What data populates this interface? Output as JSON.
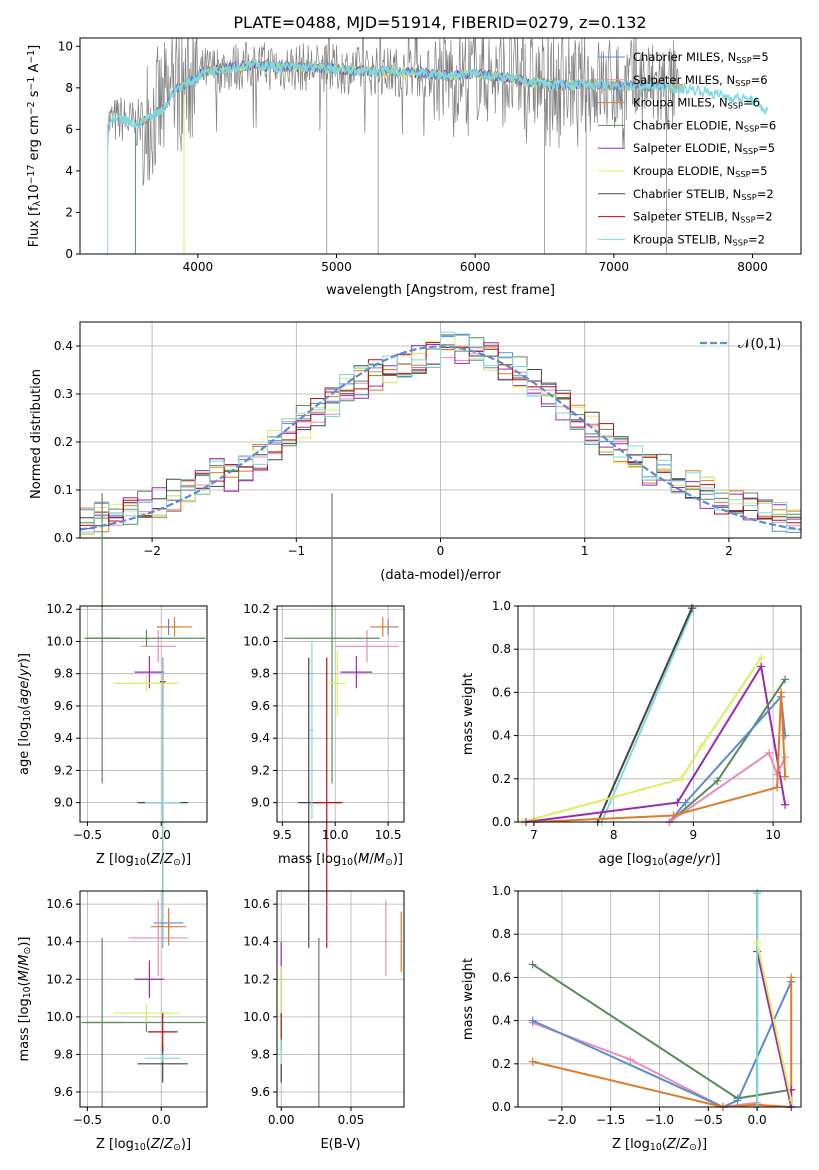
{
  "title": "PLATE=0488, MJD=51914, FIBERID=0279, z=0.132",
  "colors": {
    "chabrier_miles": "#5b8bd0",
    "salpeter_miles": "#e88cb8",
    "kroupa_miles": "#e07b2a",
    "chabrier_elodie": "#5a8a5a",
    "salpeter_elodie": "#9a2ab0",
    "kroupa_elodie": "#d8f060",
    "chabrier_stelib": "#444444",
    "salpeter_stelib": "#b01010",
    "kroupa_stelib": "#80d8e0",
    "data": "#808080",
    "normal": "#5b8bd0",
    "grid": "#b0b0b0"
  },
  "legend_spectrum": [
    {
      "name": "Chabrier MILES",
      "nssp": "5",
      "color": "#5b8bd0"
    },
    {
      "name": "Salpeter MILES",
      "nssp": "6",
      "color": "#e88cb8"
    },
    {
      "name": "Kroupa MILES",
      "nssp": "6",
      "color": "#e07b2a"
    },
    {
      "name": "Chabrier ELODIE",
      "nssp": "6",
      "color": "#5a8a5a"
    },
    {
      "name": "Salpeter ELODIE",
      "nssp": "5",
      "color": "#9a2ab0"
    },
    {
      "name": "Kroupa ELODIE",
      "nssp": "5",
      "color": "#d8f060"
    },
    {
      "name": "Chabrier STELIB",
      "nssp": "2",
      "color": "#444444"
    },
    {
      "name": "Salpeter STELIB",
      "nssp": "2",
      "color": "#b01010"
    },
    {
      "name": "Kroupa STELIB",
      "nssp": "2",
      "color": "#80d8e0"
    }
  ],
  "chart_data": [
    {
      "id": "spectrum",
      "type": "line",
      "xlabel": "wavelength [Angstrom, rest frame]",
      "ylabel": "Flux [f_λ10^-17 erg cm^-2 s^-1 A^-1]",
      "xlim": [
        3150,
        8350
      ],
      "ylim": [
        0,
        10.4
      ],
      "xticks": [
        4000,
        5000,
        6000,
        7000,
        8000
      ],
      "yticks": [
        0,
        2,
        4,
        6,
        8,
        10
      ],
      "continuum": {
        "x": [
          3350,
          3450,
          3550,
          3650,
          3750,
          3850,
          3950,
          4050,
          4150,
          4250,
          4400,
          4600,
          4800,
          5000,
          5200,
          5400,
          5600,
          5800,
          6000,
          6200,
          6400,
          6600,
          6800,
          7000,
          7200,
          7400,
          7600,
          7800,
          8000,
          8100
        ],
        "y": [
          6.3,
          6.5,
          6.2,
          6.6,
          7.0,
          8.0,
          8.3,
          8.8,
          8.9,
          9.0,
          9.1,
          9.0,
          9.0,
          8.9,
          8.8,
          8.8,
          8.7,
          8.6,
          8.7,
          8.5,
          8.3,
          8.1,
          8.2,
          8.1,
          8.1,
          8.0,
          7.9,
          7.6,
          7.4,
          6.9
        ]
      },
      "grid": false,
      "legend_position": "upper right"
    },
    {
      "id": "residuals",
      "type": "step",
      "xlabel": "(data-model)/error",
      "ylabel": "Normed distribution",
      "xlim": [
        -2.5,
        2.5
      ],
      "ylim": [
        0,
        0.45
      ],
      "xticks": [
        -2,
        -1,
        0,
        1,
        2
      ],
      "yticks": [
        0.0,
        0.1,
        0.2,
        0.3,
        0.4
      ],
      "bin_width": 0.1,
      "normal_label": "𝒩(0,1)",
      "grid": true,
      "legend_position": "upper right"
    },
    {
      "id": "age_vs_z",
      "type": "errorbar",
      "xlabel": "Z [log10(Z/Z⊙)]",
      "ylabel": "age  [log10(age/yr)]",
      "xlim": [
        -0.55,
        0.31
      ],
      "ylim": [
        8.88,
        10.22
      ],
      "xticks": [
        -0.5,
        0.0
      ],
      "yticks": [
        9.0,
        9.2,
        9.4,
        9.6,
        9.8,
        10.0,
        10.2
      ],
      "points": [
        {
          "model": "chabrier_miles",
          "x": 0.05,
          "y": 10.09,
          "xerr": 0.08,
          "yerr": 0.05
        },
        {
          "model": "salpeter_miles",
          "x": -0.02,
          "y": 9.97,
          "xerr": 0.12,
          "yerr": 0.1
        },
        {
          "model": "kroupa_miles",
          "x": 0.09,
          "y": 10.09,
          "xerr": 0.12,
          "yerr": 0.06
        },
        {
          "model": "chabrier_elodie",
          "x": -0.4,
          "y": 10.02,
          "xerr": 0.12,
          "yerr": 0.9
        },
        {
          "model": "chabrier_elodie",
          "x": -0.1,
          "y": 10.02,
          "xerr": 0.4,
          "yerr": 0.05
        },
        {
          "model": "salpeter_elodie",
          "x": -0.08,
          "y": 9.81,
          "xerr": 0.1,
          "yerr": 0.1
        },
        {
          "model": "kroupa_elodie",
          "x": -0.1,
          "y": 9.74,
          "xerr": 0.22,
          "yerr": 0.05
        },
        {
          "model": "chabrier_stelib",
          "x": 0.01,
          "y": 9.0,
          "xerr": 0.17,
          "yerr": 0.9
        },
        {
          "model": "salpeter_stelib",
          "x": 0.01,
          "y": 9.75,
          "xerr": 0.02,
          "yerr": 0.15
        },
        {
          "model": "kroupa_stelib",
          "x": 0.01,
          "y": 9.0,
          "xerr": 0.12,
          "yerr": 0.9
        }
      ],
      "grid": true
    },
    {
      "id": "age_vs_mass",
      "type": "errorbar",
      "xlabel": "mass [log10(M/M⊙)]",
      "ylabel": "",
      "xlim": [
        9.45,
        10.65
      ],
      "ylim": [
        8.88,
        10.22
      ],
      "xticks": [
        9.5,
        10.0,
        10.5
      ],
      "yticks": [
        9.0,
        9.2,
        9.4,
        9.6,
        9.8,
        10.0,
        10.2
      ],
      "points": [
        {
          "model": "chabrier_miles",
          "x": 10.5,
          "y": 10.09,
          "xerr": 0.1,
          "yerr": 0.05
        },
        {
          "model": "salpeter_miles",
          "x": 10.3,
          "y": 9.97,
          "xerr": 0.3,
          "yerr": 0.1
        },
        {
          "model": "kroupa_miles",
          "x": 10.45,
          "y": 10.09,
          "xerr": 0.12,
          "yerr": 0.06
        },
        {
          "model": "chabrier_elodie",
          "x": 9.97,
          "y": 10.02,
          "xerr": 0.45,
          "yerr": 0.9
        },
        {
          "model": "salpeter_elodie",
          "x": 10.2,
          "y": 9.81,
          "xerr": 0.15,
          "yerr": 0.1
        },
        {
          "model": "kroupa_elodie",
          "x": 10.02,
          "y": 9.74,
          "xerr": 0.08,
          "yerr": 0.2
        },
        {
          "model": "chabrier_stelib",
          "x": 9.75,
          "y": 9.0,
          "xerr": 0.1,
          "yerr": 0.9
        },
        {
          "model": "salpeter_stelib",
          "x": 9.92,
          "y": 9.0,
          "xerr": 0.15,
          "yerr": 0.9
        },
        {
          "model": "kroupa_stelib",
          "x": 9.78,
          "y": 9.45,
          "xerr": 0.02,
          "yerr": 0.55
        }
      ],
      "grid": true
    },
    {
      "id": "weight_vs_age",
      "type": "line",
      "xlabel": "age  [log10(age/yr)]",
      "ylabel": "mass weight",
      "xlim": [
        6.8,
        10.35
      ],
      "ylim": [
        0,
        1.0
      ],
      "xticks": [
        7,
        8,
        9,
        10
      ],
      "yticks": [
        0.0,
        0.2,
        0.4,
        0.6,
        0.8,
        1.0
      ],
      "series": [
        {
          "model": "kroupa_stelib",
          "x": [
            7.85,
            9.0
          ],
          "y": [
            0.0,
            0.99
          ]
        },
        {
          "model": "chabrier_stelib",
          "x": [
            7.8,
            8.98
          ],
          "y": [
            0.0,
            0.99
          ]
        },
        {
          "model": "kroupa_elodie",
          "x": [
            6.85,
            8.85,
            9.1,
            9.85
          ],
          "y": [
            0.0,
            0.2,
            0.35,
            0.76
          ]
        },
        {
          "model": "salpeter_elodie",
          "x": [
            6.9,
            8.8,
            9.85,
            10.15
          ],
          "y": [
            0.0,
            0.09,
            0.72,
            0.08
          ]
        },
        {
          "model": "chabrier_elodie",
          "x": [
            8.7,
            9.3,
            10.15
          ],
          "y": [
            0.0,
            0.19,
            0.66
          ]
        },
        {
          "model": "chabrier_miles",
          "x": [
            8.7,
            8.9,
            10.1,
            10.15
          ],
          "y": [
            0.0,
            0.09,
            0.58,
            0.4
          ]
        },
        {
          "model": "salpeter_miles",
          "x": [
            8.7,
            9.95,
            10.05,
            10.15
          ],
          "y": [
            0.0,
            0.32,
            0.22,
            0.3
          ]
        },
        {
          "model": "kroupa_miles",
          "x": [
            7.0,
            8.75,
            10.05,
            10.1,
            10.15
          ],
          "y": [
            0.0,
            0.03,
            0.16,
            0.6,
            0.21
          ]
        }
      ],
      "grid": true
    },
    {
      "id": "mass_vs_z",
      "type": "errorbar",
      "xlabel": "Z [log10(Z/Z⊙)]",
      "ylabel": "mass [log10(M/M⊙)]",
      "xlim": [
        -0.55,
        0.31
      ],
      "ylim": [
        9.52,
        10.67
      ],
      "xticks": [
        -0.5,
        0.0
      ],
      "yticks": [
        9.6,
        9.8,
        10.0,
        10.2,
        10.4,
        10.6
      ],
      "points": [
        {
          "model": "chabrier_miles",
          "x": 0.05,
          "y": 10.5,
          "xerr": 0.1,
          "yerr": 0.05
        },
        {
          "model": "salpeter_miles",
          "x": -0.02,
          "y": 10.42,
          "xerr": 0.2,
          "yerr": 0.2
        },
        {
          "model": "kroupa_miles",
          "x": 0.05,
          "y": 10.48,
          "xerr": 0.12,
          "yerr": 0.1
        },
        {
          "model": "chabrier_elodie",
          "x": -0.4,
          "y": 9.97,
          "xerr": 0.14,
          "yerr": 0.45
        },
        {
          "model": "chabrier_elodie",
          "x": -0.1,
          "y": 9.97,
          "xerr": 0.4,
          "yerr": 0.05
        },
        {
          "model": "salpeter_elodie",
          "x": -0.08,
          "y": 10.2,
          "xerr": 0.1,
          "yerr": 0.1
        },
        {
          "model": "kroupa_elodie",
          "x": -0.1,
          "y": 10.02,
          "xerr": 0.22,
          "yerr": 0.05
        },
        {
          "model": "chabrier_stelib",
          "x": 0.01,
          "y": 9.75,
          "xerr": 0.17,
          "yerr": 0.1
        },
        {
          "model": "salpeter_stelib",
          "x": 0.01,
          "y": 9.92,
          "xerr": 0.1,
          "yerr": 0.1
        },
        {
          "model": "kroupa_stelib",
          "x": 0.01,
          "y": 9.78,
          "xerr": 0.12,
          "yerr": 0.02
        }
      ],
      "grid": true
    },
    {
      "id": "mass_vs_ebv",
      "type": "errorbar",
      "xlabel": "E(B-V)",
      "ylabel": "",
      "xlim": [
        -0.003,
        0.088
      ],
      "ylim": [
        9.52,
        10.67
      ],
      "xticks": [
        0.0,
        0.05
      ],
      "yticks": [
        9.6,
        9.8,
        10.0,
        10.2,
        10.4,
        10.6
      ],
      "points": [
        {
          "model": "salpeter_miles",
          "x": 0.075,
          "y": 10.42,
          "xerr": 0,
          "yerr": 0.2
        },
        {
          "model": "kroupa_miles",
          "x": 0.086,
          "y": 10.4,
          "xerr": 0,
          "yerr": 0.16
        },
        {
          "model": "chabrier_elodie",
          "x": 0.027,
          "y": 9.97,
          "xerr": 0,
          "yerr": 0.45
        },
        {
          "model": "salpeter_elodie",
          "x": 0.0,
          "y": 10.2,
          "xerr": 0,
          "yerr": 0.2
        },
        {
          "model": "kroupa_elodie",
          "x": 0.0,
          "y": 10.02,
          "xerr": 0,
          "yerr": 0.25
        },
        {
          "model": "salpeter_stelib",
          "x": 0.0,
          "y": 9.92,
          "xerr": 0,
          "yerr": 0.1
        },
        {
          "model": "kroupa_stelib",
          "x": 0.0,
          "y": 9.78,
          "xerr": 0,
          "yerr": 0.1
        },
        {
          "model": "chabrier_stelib",
          "x": 0.0,
          "y": 9.7,
          "xerr": 0,
          "yerr": 0.05
        }
      ],
      "grid": true
    },
    {
      "id": "weight_vs_z",
      "type": "line",
      "xlabel": "Z [log10(Z/Z⊙)]",
      "ylabel": "mass weight",
      "xlim": [
        -2.45,
        0.45
      ],
      "ylim": [
        0,
        1.0
      ],
      "xticks": [
        -2.0,
        -1.5,
        -1.0,
        -0.5,
        0.0
      ],
      "yticks": [
        0.0,
        0.2,
        0.4,
        0.6,
        0.8,
        1.0
      ],
      "series": [
        {
          "model": "chabrier_elodie",
          "x": [
            -2.3,
            -0.2,
            0.35
          ],
          "y": [
            0.66,
            0.04,
            0.08
          ]
        },
        {
          "model": "salpeter_miles",
          "x": [
            -2.3,
            -1.3,
            -0.35,
            0.0
          ],
          "y": [
            0.39,
            0.22,
            0.0,
            0.02
          ]
        },
        {
          "model": "chabrier_miles",
          "x": [
            -2.3,
            -0.35,
            -0.2,
            0.35
          ],
          "y": [
            0.4,
            0.0,
            0.03,
            0.58
          ]
        },
        {
          "model": "kroupa_miles",
          "x": [
            -2.3,
            -0.35,
            0.0,
            0.35,
            0.35
          ],
          "y": [
            0.21,
            0.0,
            0.01,
            0.0,
            0.6
          ]
        },
        {
          "model": "salpeter_elodie",
          "x": [
            0.0,
            0.35,
            0.35
          ],
          "y": [
            0.72,
            0.0,
            0.08
          ]
        },
        {
          "model": "chabrier_stelib",
          "x": [
            0.0,
            0.0
          ],
          "y": [
            0.0,
            0.99
          ]
        },
        {
          "model": "kroupa_stelib",
          "x": [
            0.0,
            0.0
          ],
          "y": [
            0.0,
            0.99
          ]
        },
        {
          "model": "kroupa_elodie",
          "x": [
            0.0,
            0.35
          ],
          "y": [
            0.76,
            0.03
          ]
        }
      ],
      "grid": true
    }
  ]
}
